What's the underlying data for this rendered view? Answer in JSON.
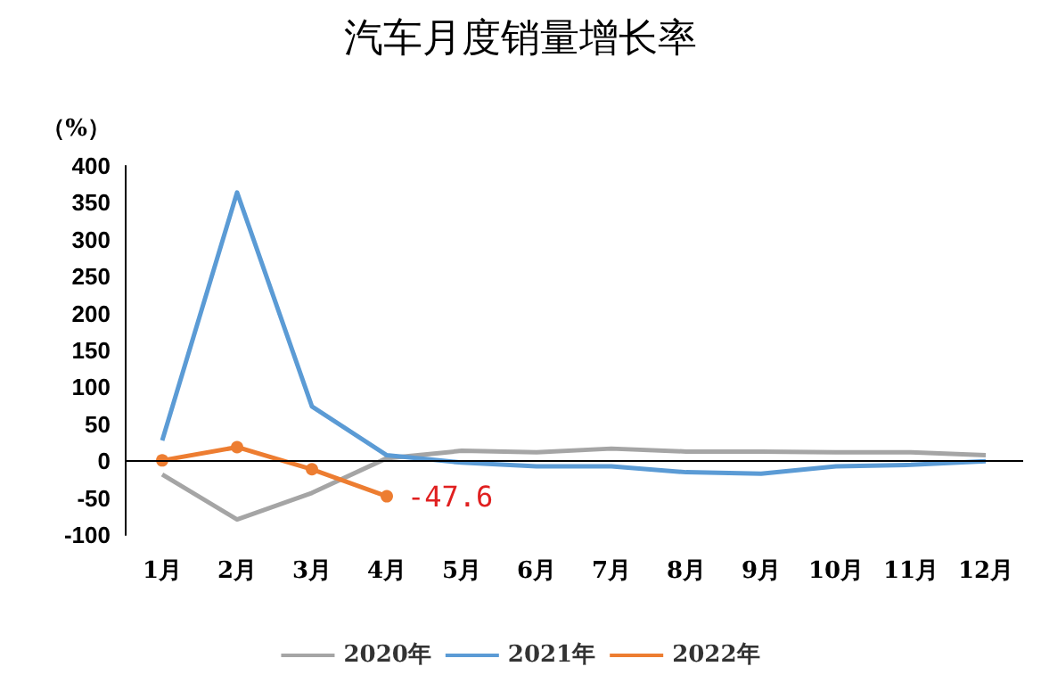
{
  "chart_data": {
    "type": "line",
    "title": "汽车月度销量增长率",
    "ylabel": "（%）",
    "categories": [
      "1月",
      "2月",
      "3月",
      "4月",
      "5月",
      "6月",
      "7月",
      "8月",
      "9月",
      "10月",
      "11月",
      "12月"
    ],
    "series": [
      {
        "name": "2020年",
        "color": "#a5a5a5",
        "marker": "none",
        "values": [
          -18,
          -79,
          -43,
          4,
          14,
          12,
          17,
          13,
          13,
          12,
          12,
          8
        ]
      },
      {
        "name": "2021年",
        "color": "#5b9bd5",
        "marker": "none",
        "values": [
          28,
          364,
          74,
          8,
          -2,
          -7,
          -7,
          -15,
          -17,
          -7,
          -5,
          0
        ]
      },
      {
        "name": "2022年",
        "color": "#ed7d31",
        "marker": "circle",
        "values": [
          1,
          19,
          -11,
          -47.6,
          null,
          null,
          null,
          null,
          null,
          null,
          null,
          null
        ],
        "value_labels": [
          null,
          null,
          null,
          "-47.6",
          null,
          null,
          null,
          null,
          null,
          null,
          null,
          null
        ]
      }
    ],
    "ylim": [
      -100,
      400
    ],
    "yticks": [
      -100,
      -50,
      0,
      50,
      100,
      150,
      200,
      250,
      300,
      350,
      400
    ],
    "ref_lines": [
      {
        "axis": "y",
        "value": 0,
        "color": "#000000"
      }
    ],
    "grid": false,
    "legend": "bottom"
  }
}
